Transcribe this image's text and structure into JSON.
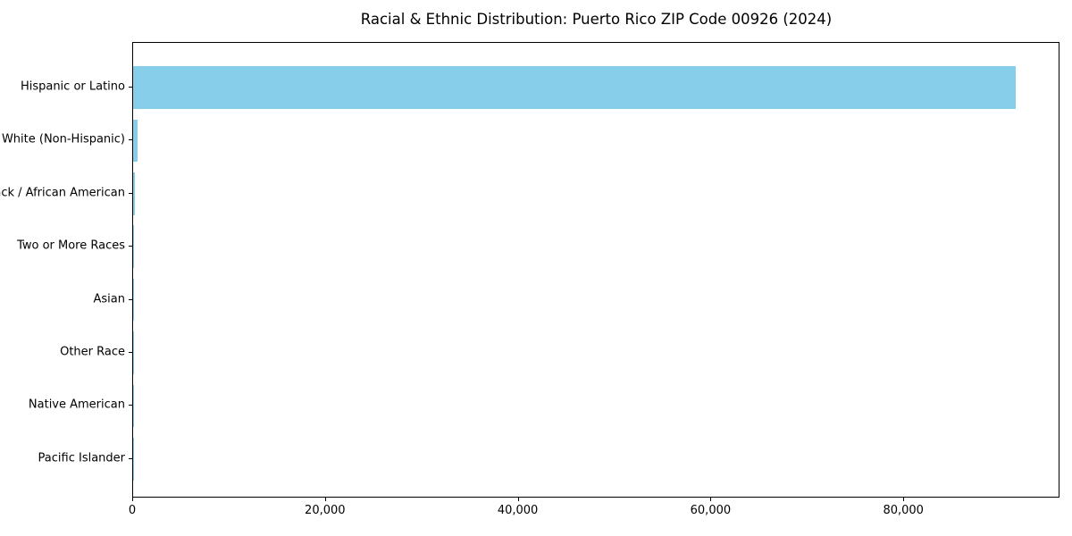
{
  "chart_data": {
    "type": "bar",
    "orientation": "horizontal",
    "title": "Racial & Ethnic Distribution: Puerto Rico ZIP Code 00926 (2024)",
    "categories": [
      "Hispanic or Latino",
      "White (Non-Hispanic)",
      "Black / African American",
      "Two or More Races",
      "Asian",
      "Other Race",
      "Native American",
      "Pacific Islander"
    ],
    "values": [
      91600,
      420,
      150,
      90,
      80,
      70,
      20,
      10
    ],
    "xlabel": "",
    "ylabel": "",
    "xlim": [
      0,
      96200
    ],
    "x_ticks": [
      0,
      20000,
      40000,
      60000,
      80000
    ],
    "x_tick_labels": [
      "0",
      "20,000",
      "40,000",
      "60,000",
      "80,000"
    ],
    "grid": false,
    "legend": null,
    "bar_color": "#87CEEB",
    "text_color": "#000000",
    "background_color": "#ffffff",
    "frame": "full-box"
  }
}
